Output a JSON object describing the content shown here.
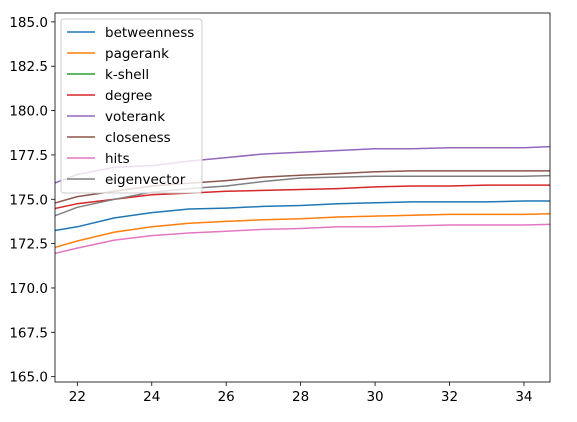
{
  "chart_data": {
    "type": "line",
    "title": "",
    "xlabel": "",
    "ylabel": "",
    "xlim": [
      21.4,
      34.7
    ],
    "ylim": [
      164.7,
      185.5
    ],
    "xticks": [
      22,
      24,
      26,
      28,
      30,
      32,
      34
    ],
    "yticks": [
      165.0,
      167.5,
      170.0,
      172.5,
      175.0,
      177.5,
      180.0,
      182.5,
      185.0
    ],
    "xtick_labels": [
      "22",
      "24",
      "26",
      "28",
      "30",
      "32",
      "34"
    ],
    "ytick_labels": [
      "165.0",
      "167.5",
      "170.0",
      "172.5",
      "175.0",
      "177.5",
      "180.0",
      "182.5",
      "185.0"
    ],
    "grid": false,
    "legend_position": "top-left",
    "x": [
      21,
      22,
      23,
      24,
      25,
      26,
      27,
      28,
      29,
      30,
      31,
      32,
      33,
      34,
      35
    ],
    "series": [
      {
        "name": "betweenness",
        "color": "#1f77b4",
        "values": [
          173.1,
          173.45,
          173.95,
          174.25,
          174.45,
          174.5,
          174.6,
          174.65,
          174.75,
          174.8,
          174.85,
          174.85,
          174.85,
          174.9,
          174.9
        ]
      },
      {
        "name": "pagerank",
        "color": "#ff7f0e",
        "values": [
          172.05,
          172.65,
          173.15,
          173.45,
          173.65,
          173.75,
          173.85,
          173.9,
          174.0,
          174.05,
          174.1,
          174.15,
          174.15,
          174.15,
          174.2
        ]
      },
      {
        "name": "k-shell",
        "color": "#2ca02c",
        "values": [
          null,
          null,
          null,
          null,
          null,
          null,
          null,
          null,
          null,
          null,
          null,
          null,
          null,
          null,
          null
        ]
      },
      {
        "name": "degree",
        "color": "#d62728",
        "values": [
          174.3,
          174.75,
          175.0,
          175.25,
          175.35,
          175.45,
          175.5,
          175.55,
          175.6,
          175.7,
          175.75,
          175.75,
          175.8,
          175.8,
          175.8
        ]
      },
      {
        "name": "voterank",
        "color": "#9467bd",
        "values": [
          175.6,
          176.4,
          176.8,
          176.9,
          177.15,
          177.35,
          177.55,
          177.65,
          177.75,
          177.85,
          177.85,
          177.9,
          177.9,
          177.9,
          178.0
        ]
      },
      {
        "name": "closeness",
        "color": "#8c564b",
        "values": [
          174.55,
          175.15,
          175.45,
          175.75,
          175.9,
          176.05,
          176.25,
          176.35,
          176.45,
          176.55,
          176.6,
          176.6,
          176.6,
          176.6,
          176.6
        ]
      },
      {
        "name": "hits",
        "color": "#e377c2",
        "values": [
          171.75,
          172.25,
          172.7,
          172.95,
          173.1,
          173.2,
          173.3,
          173.35,
          173.45,
          173.45,
          173.5,
          173.55,
          173.55,
          173.55,
          173.6
        ]
      },
      {
        "name": "eigenvector",
        "color": "#7f7f7f",
        "values": [
          173.75,
          174.55,
          175.0,
          175.4,
          175.6,
          175.75,
          176.0,
          176.2,
          176.25,
          176.3,
          176.3,
          176.3,
          176.3,
          176.3,
          176.35
        ]
      }
    ]
  }
}
